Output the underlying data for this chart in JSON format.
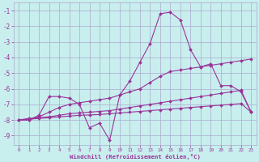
{
  "xlabel": "Windchill (Refroidissement éolien,°C)",
  "bg_color": "#c8eeee",
  "grid_color": "#aaaacc",
  "line_color": "#993399",
  "xlim_min": -0.5,
  "xlim_max": 23.5,
  "ylim_min": -9.6,
  "ylim_max": -0.5,
  "yticks": [
    -9,
    -8,
    -7,
    -6,
    -5,
    -4,
    -3,
    -2,
    -1
  ],
  "xticks": [
    0,
    1,
    2,
    3,
    4,
    5,
    6,
    7,
    8,
    9,
    10,
    11,
    12,
    13,
    14,
    15,
    16,
    17,
    18,
    19,
    20,
    21,
    22,
    23
  ],
  "s1_x": [
    0,
    1,
    2,
    3,
    4,
    5,
    6,
    7,
    8,
    9,
    10,
    11,
    12,
    13,
    14,
    15,
    16,
    17,
    18,
    19,
    20,
    21,
    22,
    23
  ],
  "s1_y": [
    -8.0,
    -8.0,
    -7.7,
    -6.5,
    -6.5,
    -6.6,
    -7.0,
    -8.5,
    -8.2,
    -9.3,
    -6.4,
    -5.5,
    -4.3,
    -3.1,
    -1.2,
    -1.1,
    -1.6,
    -3.5,
    -4.6,
    -4.4,
    -5.8,
    -5.8,
    -6.2,
    -7.5
  ],
  "s2_x": [
    0,
    1,
    2,
    3,
    4,
    5,
    6,
    7,
    8,
    9,
    10,
    11,
    12,
    13,
    14,
    15,
    16,
    17,
    18,
    19,
    20,
    21,
    22,
    23
  ],
  "s2_y": [
    -8.0,
    -8.0,
    -7.8,
    -7.5,
    -7.2,
    -7.0,
    -6.9,
    -6.8,
    -6.7,
    -6.6,
    -6.4,
    -6.2,
    -6.0,
    -5.6,
    -5.2,
    -4.9,
    -4.8,
    -4.7,
    -4.6,
    -4.5,
    -4.4,
    -4.3,
    -4.2,
    -4.1
  ],
  "s3_x": [
    0,
    1,
    2,
    3,
    4,
    5,
    6,
    7,
    8,
    9,
    10,
    11,
    12,
    13,
    14,
    15,
    16,
    17,
    18,
    19,
    20,
    21,
    22,
    23
  ],
  "s3_y": [
    -8.0,
    -7.9,
    -7.85,
    -7.8,
    -7.7,
    -7.6,
    -7.55,
    -7.5,
    -7.45,
    -7.4,
    -7.3,
    -7.2,
    -7.1,
    -7.0,
    -6.9,
    -6.8,
    -6.7,
    -6.6,
    -6.5,
    -6.4,
    -6.3,
    -6.2,
    -6.1,
    -7.5
  ],
  "s4_x": [
    0,
    1,
    2,
    3,
    4,
    5,
    6,
    7,
    8,
    9,
    10,
    11,
    12,
    13,
    14,
    15,
    16,
    17,
    18,
    19,
    20,
    21,
    22,
    23
  ],
  "s4_y": [
    -8.0,
    -7.95,
    -7.9,
    -7.85,
    -7.8,
    -7.75,
    -7.7,
    -7.68,
    -7.65,
    -7.6,
    -7.55,
    -7.5,
    -7.45,
    -7.4,
    -7.35,
    -7.3,
    -7.25,
    -7.2,
    -7.15,
    -7.1,
    -7.05,
    -7.0,
    -6.95,
    -7.5
  ]
}
